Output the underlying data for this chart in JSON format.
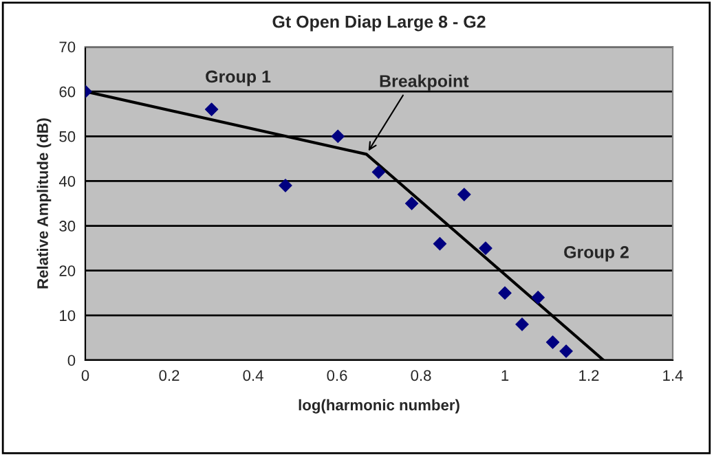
{
  "chart_data": {
    "type": "scatter",
    "title": "Gt Open Diap Large 8 - G2",
    "xlabel": "log(harmonic number)",
    "ylabel": "Relative Amplitude (dB)",
    "x": [
      0,
      0.301,
      0.477,
      0.602,
      0.699,
      0.778,
      0.845,
      0.903,
      0.954,
      1.0,
      1.041,
      1.079,
      1.114,
      1.146
    ],
    "series": [
      {
        "color": "#000080",
        "marker": "diamond",
        "values": [
          60,
          56,
          39,
          50,
          42,
          35,
          26,
          37,
          25,
          15,
          8,
          14,
          4,
          2
        ]
      },
      {
        "type": "line",
        "color": "#000000",
        "marker": "none",
        "line_style": "solid",
        "x": [
          0,
          0.67,
          1.235
        ],
        "values": [
          60,
          46,
          0
        ]
      }
    ],
    "annotations": [
      "Group 1",
      {
        "text": "Breakpoint",
        "x": 0.67,
        "y": 46
      },
      "Group 2"
    ],
    "xlim": [
      0,
      1.4
    ],
    "xticks": [
      0,
      0.2,
      0.4,
      0.6,
      0.8,
      1,
      1.2,
      1.4
    ],
    "ylim": [
      0,
      70
    ],
    "yticks": [
      0,
      10,
      20,
      30,
      40,
      50,
      60,
      70
    ],
    "grid": "y",
    "legend": false
  }
}
